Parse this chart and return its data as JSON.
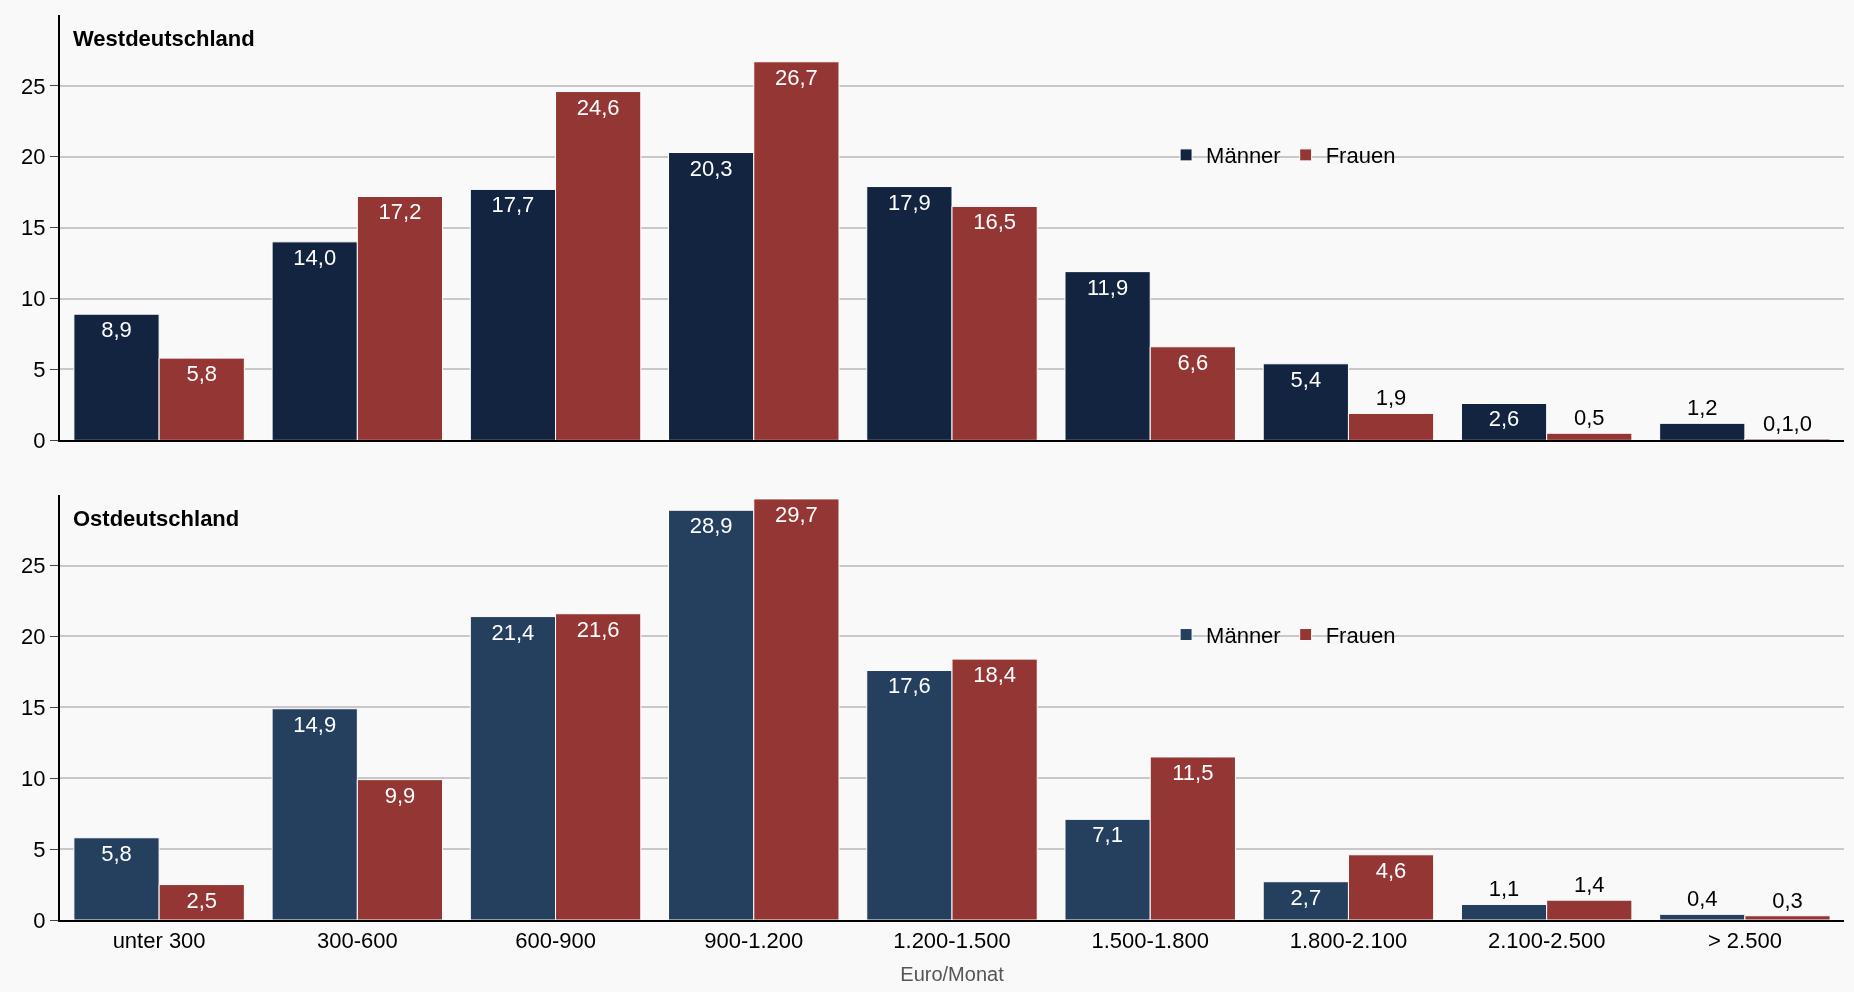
{
  "chart_data": [
    {
      "type": "bar",
      "title": "Westdeutschland",
      "categories": [
        null,
        null,
        null,
        null,
        null,
        null,
        null,
        null,
        null
      ],
      "series": [
        {
          "name": "Männer",
          "color": "#12243f",
          "values": [
            8.9,
            14.0,
            17.7,
            20.3,
            17.9,
            11.9,
            5.4,
            2.6,
            1.2
          ],
          "value_labels": [
            "8,9",
            "14,0",
            "17,7",
            "20,3",
            "17,9",
            "11,9",
            "5,4",
            "2,6",
            "1,2"
          ]
        },
        {
          "name": "Frauen",
          "color": "#943634",
          "values": [
            5.8,
            17.2,
            24.6,
            26.7,
            16.5,
            6.6,
            1.9,
            0.5,
            0.1
          ],
          "value_labels": [
            "5,8",
            "17,2",
            "24,6",
            "26,7",
            "16,5",
            "6,6",
            "1,9",
            "0,5",
            "0,1,0"
          ]
        }
      ],
      "ylim": [
        0,
        30
      ],
      "yticks": [
        0,
        5,
        10,
        15,
        20,
        25
      ],
      "grid": "y",
      "legend": "top right",
      "tick_labels": "y"
    },
    {
      "type": "bar",
      "title": "Ostdeutschland",
      "xlabel": "Euro/Monat",
      "categories": [
        "unter 300",
        "300-600",
        "600-900",
        "900-1.200",
        "1.200-1.500",
        "1.500-1.800",
        "1.800-2.100",
        "2.100-2.500",
        "> 2.500"
      ],
      "series": [
        {
          "name": "Männer",
          "color": "#253f5f",
          "values": [
            5.8,
            14.9,
            21.4,
            28.9,
            17.6,
            7.1,
            2.7,
            1.1,
            0.4
          ],
          "value_labels": [
            "5,8",
            "14,9",
            "21,4",
            "28,9",
            "17,6",
            "7,1",
            "2,7",
            "1,1",
            "0,4"
          ]
        },
        {
          "name": "Frauen",
          "color": "#943634",
          "values": [
            2.5,
            9.9,
            21.6,
            29.7,
            18.4,
            11.5,
            4.6,
            1.4,
            0.3
          ],
          "value_labels": [
            "2,5",
            "9,9",
            "21,6",
            "29,7",
            "18,4",
            "11,5",
            "4,6",
            "1,4",
            "0,3"
          ]
        }
      ],
      "ylim": [
        0,
        30
      ],
      "yticks": [
        0,
        5,
        10,
        15,
        20,
        25
      ],
      "grid": "y",
      "legend": "top right"
    }
  ]
}
